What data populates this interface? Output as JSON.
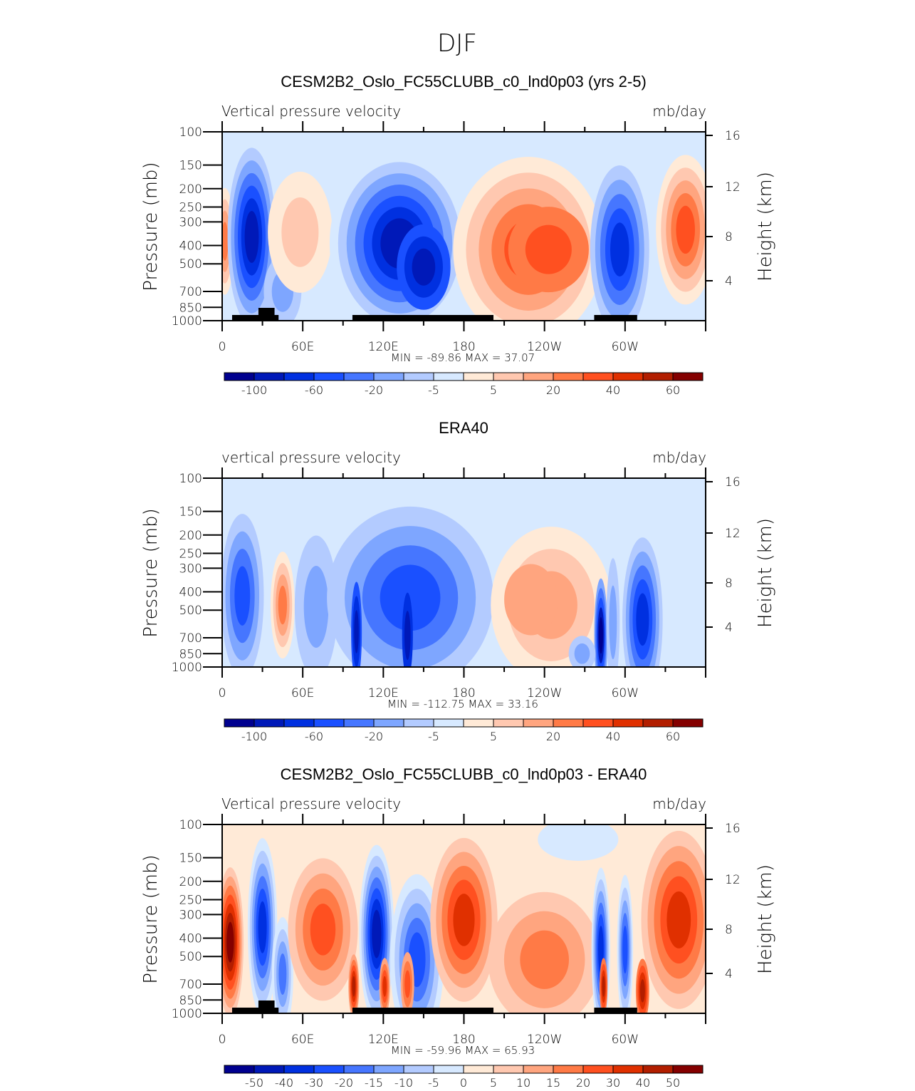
{
  "figure_title": "DJF",
  "colors": [
    "#00008f",
    "#0019b8",
    "#0030e0",
    "#1a50ff",
    "#4676ff",
    "#7ea6ff",
    "#b3cbff",
    "#d7e9ff",
    "#ffead7",
    "#ffc8b0",
    "#ffa57f",
    "#ff7a46",
    "#ff5020",
    "#e03000",
    "#b21e00",
    "#840000"
  ],
  "chart_data": [
    {
      "type": "heatmap",
      "title": "CESM2B2_Oslo_FC55CLUBB_c0_lnd0p03 (yrs 2-5)",
      "left_string": "Vertical pressure velocity",
      "right_string": "mb/day",
      "ylabel": "Pressure (mb)",
      "y2label": "Height (km)",
      "xticks": [
        "0",
        "60E",
        "120E",
        "180",
        "120W",
        "60W"
      ],
      "yticks": [
        "100",
        "150",
        "200",
        "250",
        "300",
        "400",
        "500",
        "700",
        "850",
        "1000"
      ],
      "y2ticks": [
        "16",
        "12",
        "8",
        "4"
      ],
      "stats": "MIN = -89.86   MAX =  37.07",
      "min": -89.86,
      "max": 37.07,
      "colorbar_labels": [
        "-100",
        "",
        "-60",
        "",
        "-20",
        "",
        "-5",
        "",
        "5",
        "",
        "20",
        "",
        "40",
        "",
        "60"
      ]
    },
    {
      "type": "heatmap",
      "title": "ERA40",
      "left_string": "vertical pressure velocity",
      "right_string": "mb/day",
      "ylabel": "Pressure (mb)",
      "y2label": "Height (km)",
      "xticks": [
        "0",
        "60E",
        "120E",
        "180",
        "120W",
        "60W"
      ],
      "yticks": [
        "100",
        "150",
        "200",
        "250",
        "300",
        "400",
        "500",
        "700",
        "850",
        "1000"
      ],
      "y2ticks": [
        "16",
        "12",
        "8",
        "4"
      ],
      "stats": "MIN = -112.75   MAX =  33.16",
      "min": -112.75,
      "max": 33.16,
      "colorbar_labels": [
        "-100",
        "",
        "-60",
        "",
        "-20",
        "",
        "-5",
        "",
        "5",
        "",
        "20",
        "",
        "40",
        "",
        "60"
      ]
    },
    {
      "type": "heatmap",
      "title": "CESM2B2_Oslo_FC55CLUBB_c0_lnd0p03 - ERA40",
      "left_string": "Vertical pressure velocity",
      "right_string": "mb/day",
      "ylabel": "Pressure (mb)",
      "y2label": "Height (km)",
      "xticks": [
        "0",
        "60E",
        "120E",
        "180",
        "120W",
        "60W"
      ],
      "yticks": [
        "100",
        "150",
        "200",
        "250",
        "300",
        "400",
        "500",
        "700",
        "850",
        "1000"
      ],
      "y2ticks": [
        "16",
        "12",
        "8",
        "4"
      ],
      "stats": "MIN = -59.96   MAX =  65.93",
      "min": -59.96,
      "max": 65.93,
      "colorbar_labels": [
        "-50",
        "-40",
        "-30",
        "-20",
        "-15",
        "-10",
        "-5",
        "0",
        "5",
        "10",
        "15",
        "20",
        "30",
        "40",
        "50"
      ]
    }
  ]
}
